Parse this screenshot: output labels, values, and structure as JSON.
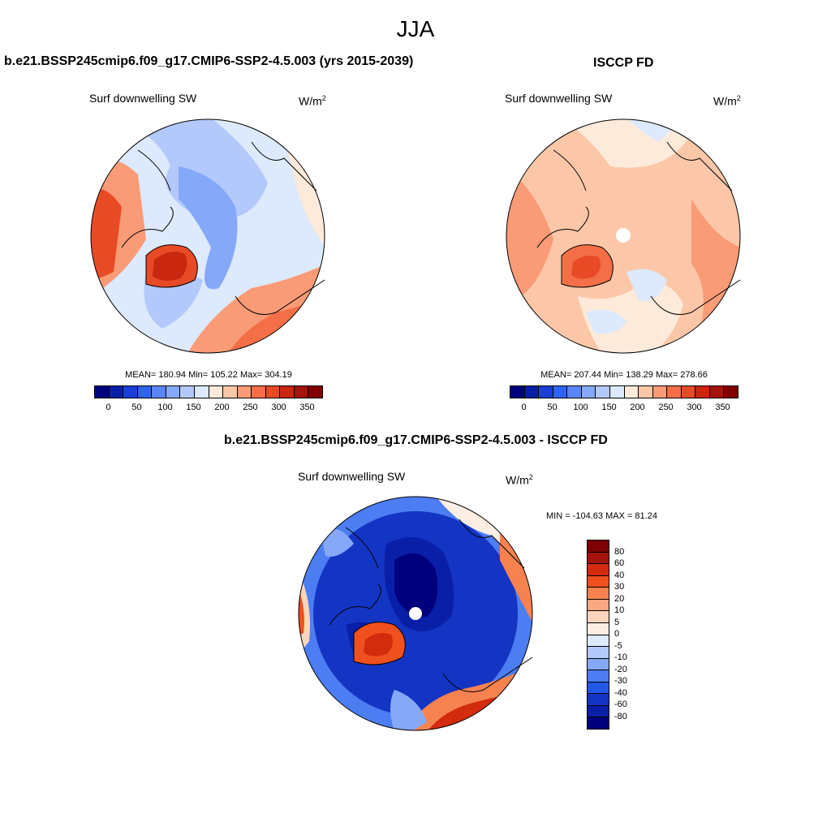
{
  "season": "JJA",
  "left_panel": {
    "header": "b.e21.BSSP245cmip6.f09_g17.CMIP6-SSP2-4.5.003 (yrs 2015-2039)",
    "variable": "Surf downwelling SW",
    "units": "W/m",
    "units_sup": "2",
    "stats": "MEAN= 180.94  Min= 105.22  Max= 304.19"
  },
  "right_panel": {
    "header": "ISCCP FD",
    "variable": "Surf downwelling SW",
    "units": "W/m",
    "units_sup": "2",
    "stats": "MEAN= 207.44  Min= 138.29  Max= 278.66"
  },
  "diff_panel": {
    "header": "b.e21.BSSP245cmip6.f09_g17.CMIP6-SSP2-4.5.003 - ISCCP FD",
    "variable": "Surf downwelling SW",
    "units": "W/m",
    "units_sup": "2",
    "stats": "MIN = -104.63 MAX =  81.24"
  },
  "abs_colorbar": {
    "colors": [
      "#00007f",
      "#0a1fa8",
      "#1a3fd8",
      "#2f62f0",
      "#5a86f5",
      "#86a8f8",
      "#b3c9fb",
      "#dde9fc",
      "#fdeadb",
      "#fcc7a8",
      "#f99b76",
      "#f46e48",
      "#e94a26",
      "#c9270f",
      "#a5140a",
      "#7e0000"
    ],
    "ticks": [
      "0",
      "50",
      "100",
      "150",
      "200",
      "250",
      "300",
      "350"
    ]
  },
  "diff_colorbar": {
    "colors": [
      "#7e0000",
      "#a5140a",
      "#d22b0d",
      "#f0501e",
      "#f6824f",
      "#faa882",
      "#fdd5bc",
      "#fdeee2",
      "#dde9fc",
      "#b3c9fb",
      "#86a8f8",
      "#4d7df2",
      "#2358e6",
      "#1435c4",
      "#0a1fa8",
      "#00007f"
    ],
    "ticks": [
      "80",
      "60",
      "40",
      "30",
      "20",
      "10",
      "5",
      "0",
      "-5",
      "-10",
      "-20",
      "-30",
      "-40",
      "-60",
      "-80"
    ]
  }
}
